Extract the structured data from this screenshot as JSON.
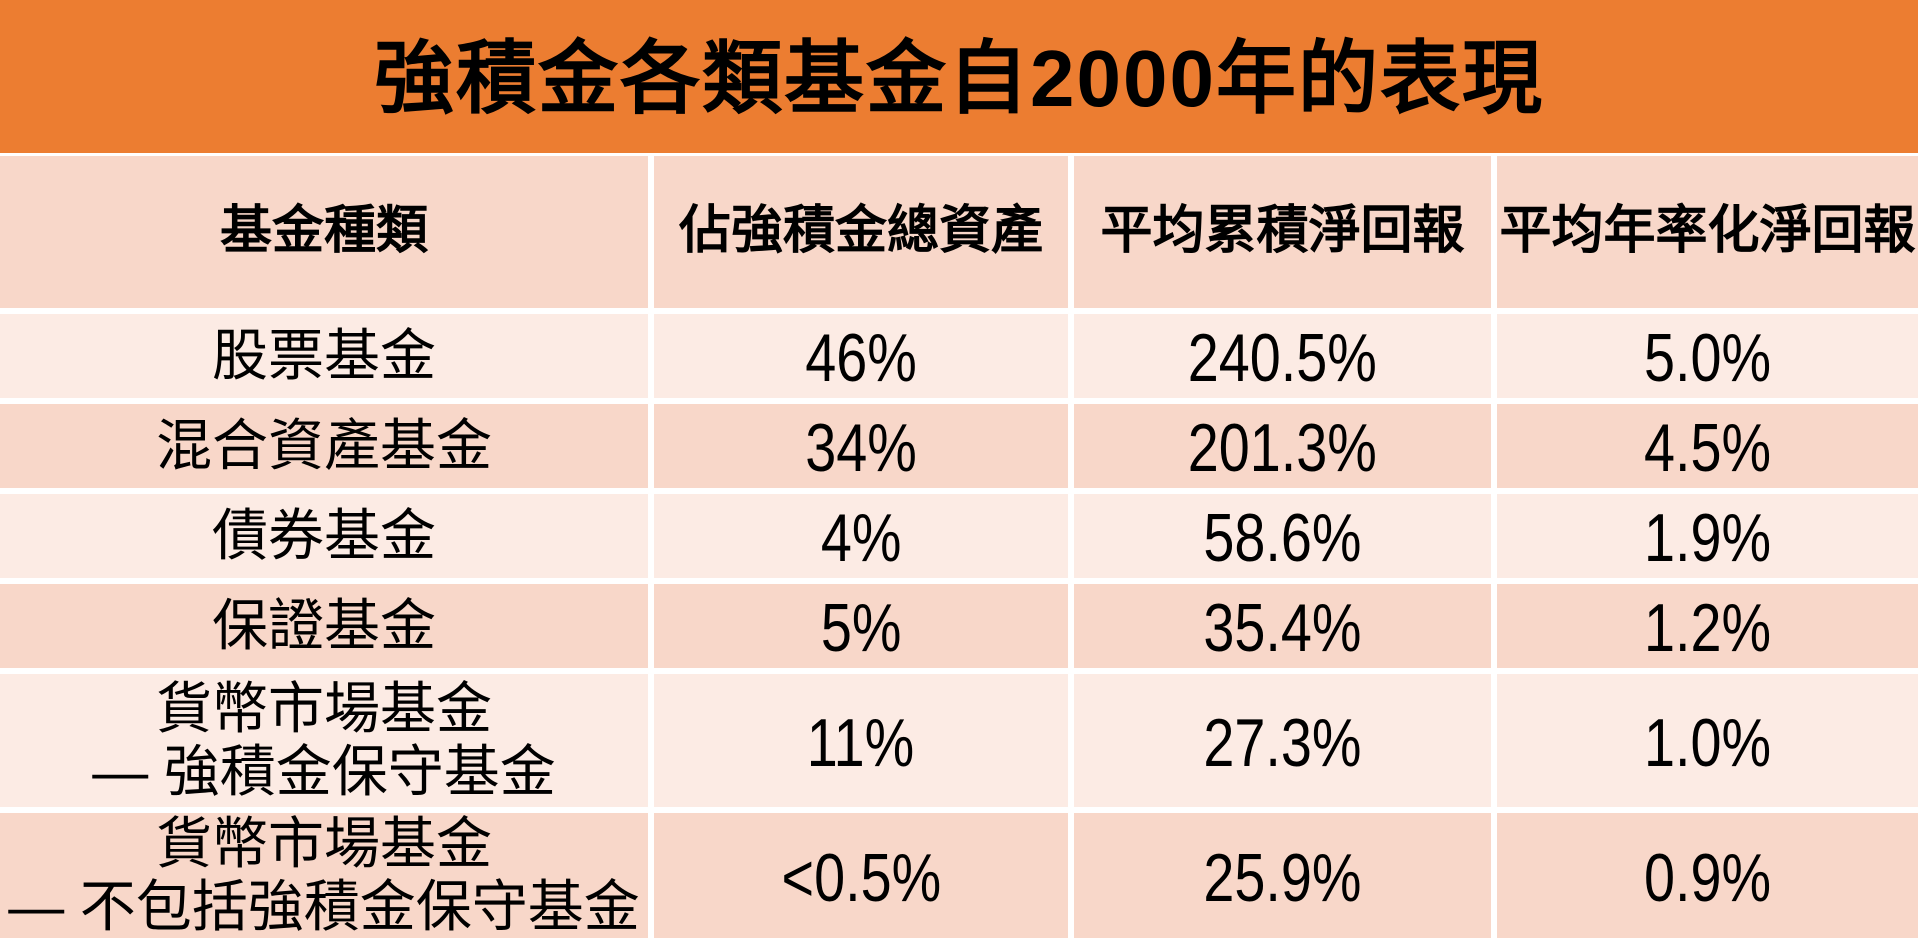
{
  "title": "強積金各類基金自2000年的表現",
  "table": {
    "headers": {
      "fund_type": "基金種類",
      "asset_share": "佔強積金總資產",
      "cumulative_return": "平均累積淨回報",
      "annualized_return": "平均年率化淨回報"
    },
    "rows": [
      {
        "name_lines": [
          "股票基金"
        ],
        "share": "46%",
        "cumulative": "240.5%",
        "annualized": "5.0%"
      },
      {
        "name_lines": [
          "混合資產基金"
        ],
        "share": "34%",
        "cumulative": "201.3%",
        "annualized": "4.5%"
      },
      {
        "name_lines": [
          "債券基金"
        ],
        "share": "4%",
        "cumulative": "58.6%",
        "annualized": "1.9%"
      },
      {
        "name_lines": [
          "保證基金"
        ],
        "share": "5%",
        "cumulative": "35.4%",
        "annualized": "1.2%"
      },
      {
        "name_lines": [
          "貨幣市場基金",
          "— 強積金保守基金"
        ],
        "share": "11%",
        "cumulative": "27.3%",
        "annualized": "1.0%"
      },
      {
        "name_lines": [
          "貨幣市場基金",
          "— 不包括強積金保守基金"
        ],
        "share": "<0.5%",
        "cumulative": "25.9%",
        "annualized": "0.9%"
      }
    ]
  },
  "colors": {
    "title_bg": "#EC7D31",
    "header_bg": "#F8D7C9",
    "row_odd_bg": "#FCEBE4",
    "row_even_bg": "#F8D7C9",
    "gap": "#FFFFFF",
    "text": "#000000"
  },
  "chart_data": {
    "type": "table",
    "title": "強積金各類基金自2000年的表現",
    "columns": [
      "基金種類",
      "佔強積金總資產",
      "平均累積淨回報",
      "平均年率化淨回報"
    ],
    "rows": [
      [
        "股票基金",
        "46%",
        "240.5%",
        "5.0%"
      ],
      [
        "混合資產基金",
        "34%",
        "201.3%",
        "4.5%"
      ],
      [
        "債券基金",
        "4%",
        "58.6%",
        "1.9%"
      ],
      [
        "保證基金",
        "5%",
        "35.4%",
        "1.2%"
      ],
      [
        "貨幣市場基金 — 強積金保守基金",
        "11%",
        "27.3%",
        "1.0%"
      ],
      [
        "貨幣市場基金 — 不包括強積金保守基金",
        "<0.5%",
        "25.9%",
        "0.9%"
      ]
    ],
    "layout": {
      "banded_rows": true,
      "title_position": "top",
      "header_style": "bold"
    }
  }
}
